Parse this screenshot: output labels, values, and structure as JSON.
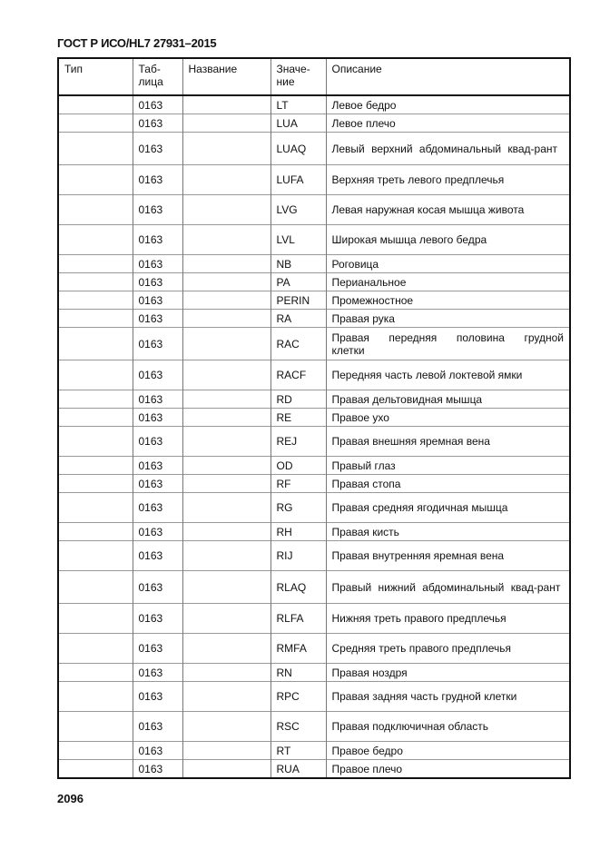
{
  "header": "ГОСТ Р ИСО/HL7 27931–2015",
  "page_number": "2096",
  "table": {
    "columns": [
      "Тип",
      "Таб-\nлица",
      "Название",
      "Значе-\nние",
      "Описание"
    ],
    "rows": [
      {
        "table": "0163",
        "value": "LT",
        "description": "Левое бедро"
      },
      {
        "table": "0163",
        "value": "LUA",
        "description": "Левое плечо"
      },
      {
        "table": "0163",
        "value": "LUAQ",
        "description": "Левый верхний абдоминальный квад-рант"
      },
      {
        "table": "0163",
        "value": "LUFA",
        "description": "Верхняя треть левого предплечья"
      },
      {
        "table": "0163",
        "value": "LVG",
        "description": "Левая наружная косая мышца живота"
      },
      {
        "table": "0163",
        "value": "LVL",
        "description": "Широкая мышца левого бедра"
      },
      {
        "table": "0163",
        "value": "NB",
        "description": "Роговица"
      },
      {
        "table": "0163",
        "value": "PA",
        "description": "Перианальное"
      },
      {
        "table": "0163",
        "value": "PERIN",
        "description": "Промежностное"
      },
      {
        "table": "0163",
        "value": "RA",
        "description": "Правая рука"
      },
      {
        "table": "0163",
        "value": "RAC",
        "description": "Правая передняя половина грудной клетки"
      },
      {
        "table": "0163",
        "value": "RACF",
        "description": "Передняя часть левой локтевой ямки"
      },
      {
        "table": "0163",
        "value": "RD",
        "description": "Правая дельтовидная мышца"
      },
      {
        "table": "0163",
        "value": "RE",
        "description": "Правое ухо"
      },
      {
        "table": "0163",
        "value": "REJ",
        "description": "Правая внешняя яремная вена"
      },
      {
        "table": "0163",
        "value": "OD",
        "description": "Правый глаз"
      },
      {
        "table": "0163",
        "value": "RF",
        "description": "Правая стопа"
      },
      {
        "table": "0163",
        "value": "RG",
        "description": "Правая средняя ягодичная мышца"
      },
      {
        "table": "0163",
        "value": "RH",
        "description": "Правая кисть"
      },
      {
        "table": "0163",
        "value": "RIJ",
        "description": "Правая внутренняя яремная вена"
      },
      {
        "table": "0163",
        "value": "RLAQ",
        "description": "Правый нижний абдоминальный квад-рант"
      },
      {
        "table": "0163",
        "value": "RLFA",
        "description": "Нижняя треть правого предплечья"
      },
      {
        "table": "0163",
        "value": "RMFA",
        "description": "Средняя треть правого предплечья"
      },
      {
        "table": "0163",
        "value": "RN",
        "description": "Правая ноздря"
      },
      {
        "table": "0163",
        "value": "RPC",
        "description": "Правая задняя часть грудной клетки"
      },
      {
        "table": "0163",
        "value": "RSC",
        "description": "Правая подключичная область"
      },
      {
        "table": "0163",
        "value": "RT",
        "description": "Правое бедро"
      },
      {
        "table": "0163",
        "value": "RUA",
        "description": "Правое плечо"
      }
    ]
  }
}
